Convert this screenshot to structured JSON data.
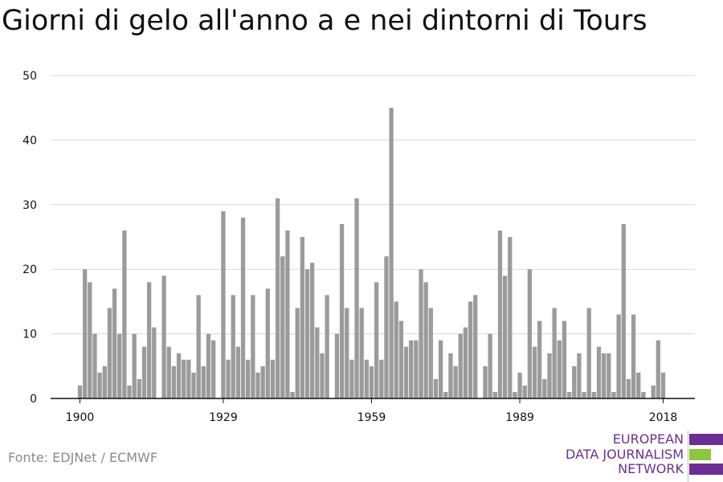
{
  "title": "Giorni di gelo all'anno a e nei dintorni di Tours",
  "source": "Fonte: EDJNet / ECMWF",
  "logo": {
    "lines": [
      "EUROPEAN",
      "DATA JOURNALISM",
      "NETWORK"
    ],
    "colors": {
      "text": "#6b2f93",
      "bar_top": "#6b2f93",
      "bar_middle": "#8dc63f",
      "bar_bottom": "#6b2f93"
    }
  },
  "colors": {
    "bar": "#9b9b9b",
    "grid": "#d9d9d9",
    "axis": "#111111",
    "text": "#111111"
  },
  "chart_data": {
    "type": "bar",
    "title": "Giorni di gelo all'anno a e nei dintorni di Tours",
    "xlabel": "",
    "ylabel": "",
    "ylim": [
      0,
      50
    ],
    "xlim": [
      1900,
      2018
    ],
    "yticks": [
      0,
      10,
      20,
      30,
      40,
      50
    ],
    "xticks": [
      1900,
      1929,
      1959,
      1989,
      2018
    ],
    "grid": true,
    "legend": "none",
    "x_start": 1900,
    "values": [
      2,
      20,
      18,
      10,
      4,
      5,
      14,
      17,
      10,
      26,
      2,
      10,
      3,
      8,
      18,
      11,
      0,
      19,
      8,
      5,
      7,
      6,
      6,
      4,
      16,
      5,
      10,
      9,
      0,
      29,
      6,
      16,
      8,
      28,
      6,
      16,
      4,
      5,
      17,
      6,
      31,
      22,
      26,
      1,
      14,
      25,
      20,
      21,
      11,
      7,
      16,
      0,
      10,
      27,
      14,
      6,
      31,
      14,
      6,
      5,
      18,
      6,
      22,
      45,
      15,
      12,
      8,
      9,
      9,
      20,
      18,
      14,
      3,
      9,
      1,
      7,
      5,
      10,
      11,
      15,
      16,
      0,
      5,
      10,
      1,
      26,
      19,
      25,
      1,
      4,
      2,
      20,
      8,
      12,
      3,
      7,
      14,
      9,
      12,
      1,
      5,
      7,
      1,
      14,
      1,
      8,
      7,
      7,
      1,
      13,
      27,
      3,
      13,
      4,
      1,
      0,
      2,
      9,
      4
    ]
  }
}
